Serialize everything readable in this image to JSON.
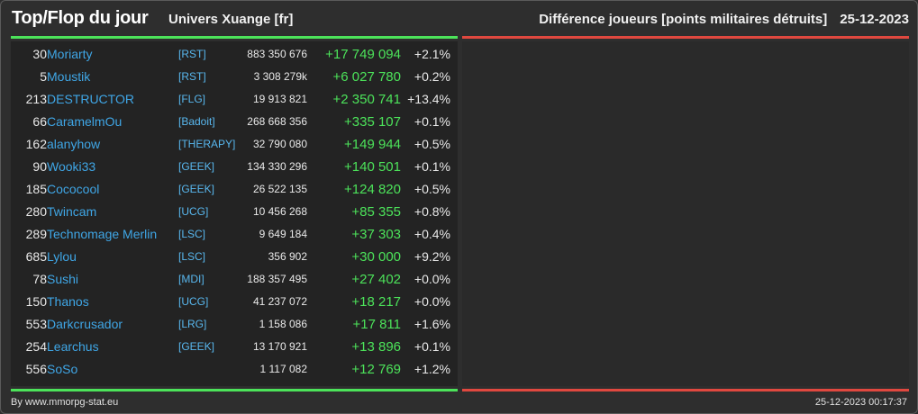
{
  "header": {
    "title": "Top/Flop du jour",
    "universe": "Univers Xuange [fr]",
    "metric": "Différence joueurs [points militaires détruits]",
    "date": "25-12-2023"
  },
  "colors": {
    "background": "#2e2e2e",
    "panel": "#232323",
    "top_accent": "#4ce35a",
    "flop_accent": "#e0483f",
    "player_link": "#3fa6e6",
    "alliance_link": "#58b7ee",
    "positive": "#4ce35a"
  },
  "top_players": [
    {
      "rank": "30",
      "name": "Moriarty",
      "alliance": "[RST]",
      "points": "883 350 676",
      "diff": "+17 749 094",
      "pct": "+2.1%"
    },
    {
      "rank": "5",
      "name": "Moustik",
      "alliance": "[RST]",
      "points": "3 308 279k",
      "diff": "+6 027 780",
      "pct": "+0.2%"
    },
    {
      "rank": "213",
      "name": "DESTRUCTOR",
      "alliance": "[FLG]",
      "points": "19 913 821",
      "diff": "+2 350 741",
      "pct": "+13.4%"
    },
    {
      "rank": "66",
      "name": "CaramelmOu",
      "alliance": "[Badoit]",
      "points": "268 668 356",
      "diff": "+335 107",
      "pct": "+0.1%"
    },
    {
      "rank": "162",
      "name": "alanyhow",
      "alliance": "[THERAPY]",
      "points": "32 790 080",
      "diff": "+149 944",
      "pct": "+0.5%"
    },
    {
      "rank": "90",
      "name": "Wooki33",
      "alliance": "[GEEK]",
      "points": "134 330 296",
      "diff": "+140 501",
      "pct": "+0.1%"
    },
    {
      "rank": "185",
      "name": "Cococool",
      "alliance": "[GEEK]",
      "points": "26 522 135",
      "diff": "+124 820",
      "pct": "+0.5%"
    },
    {
      "rank": "280",
      "name": "Twincam",
      "alliance": "[UCG]",
      "points": "10 456 268",
      "diff": "+85 355",
      "pct": "+0.8%"
    },
    {
      "rank": "289",
      "name": "Technomage Merlin",
      "alliance": "[LSC]",
      "points": "9 649 184",
      "diff": "+37 303",
      "pct": "+0.4%"
    },
    {
      "rank": "685",
      "name": "Lylou",
      "alliance": "[LSC]",
      "points": "356 902",
      "diff": "+30 000",
      "pct": "+9.2%"
    },
    {
      "rank": "78",
      "name": "Sushi",
      "alliance": "[MDI]",
      "points": "188 357 495",
      "diff": "+27 402",
      "pct": "+0.0%"
    },
    {
      "rank": "150",
      "name": "Thanos",
      "alliance": "[UCG]",
      "points": "41 237 072",
      "diff": "+18 217",
      "pct": "+0.0%"
    },
    {
      "rank": "553",
      "name": "Darkcrusador",
      "alliance": "[LRG]",
      "points": "1 158 086",
      "diff": "+17 811",
      "pct": "+1.6%"
    },
    {
      "rank": "254",
      "name": "Learchus",
      "alliance": "[GEEK]",
      "points": "13 170 921",
      "diff": "+13 896",
      "pct": "+0.1%"
    },
    {
      "rank": "556",
      "name": "SoSo",
      "alliance": "",
      "points": "1 117 082",
      "diff": "+12 769",
      "pct": "+1.2%"
    }
  ],
  "flop_players": [],
  "footer": {
    "credit": "By www.mmorpg-stat.eu",
    "timestamp": "25-12-2023 00:17:37"
  }
}
